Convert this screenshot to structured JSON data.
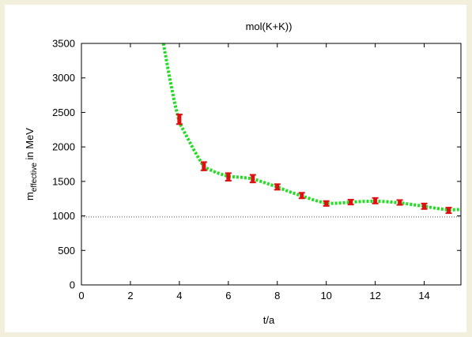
{
  "chart_data": {
    "type": "scatter",
    "title": "mol(K+K))",
    "xlabel": "t/a",
    "ylabel_main": "m",
    "ylabel_sub": "effective",
    "ylabel_tail": " in MeV",
    "xlim": [
      0,
      15.5
    ],
    "ylim": [
      0,
      3500
    ],
    "xticks": [
      "0",
      "2",
      "4",
      "6",
      "8",
      "10",
      "12",
      "14"
    ],
    "yticks": [
      "0",
      "500",
      "1000",
      "1500",
      "2000",
      "2500",
      "3000",
      "3500"
    ],
    "reference_line": 985,
    "fit_curve": {
      "x": [
        3.35,
        3.6,
        3.8,
        4.0,
        4.3,
        4.6,
        4.85,
        5.0,
        5.5,
        6.0,
        6.5,
        7.0,
        7.5,
        8.0,
        8.5,
        9.0,
        9.5,
        10.0,
        10.5,
        11.0,
        11.5,
        12.0,
        12.5,
        13.0,
        13.5,
        14.0,
        14.5,
        15.0,
        15.5
      ],
      "y": [
        3500,
        3000,
        2650,
        2350,
        2150,
        1950,
        1800,
        1710,
        1630,
        1570,
        1560,
        1540,
        1480,
        1420,
        1350,
        1290,
        1230,
        1180,
        1185,
        1200,
        1210,
        1215,
        1205,
        1190,
        1165,
        1140,
        1110,
        1085,
        1095
      ]
    },
    "points": [
      {
        "x": 4,
        "y": 2400,
        "err": 70
      },
      {
        "x": 5,
        "y": 1720,
        "err": 60
      },
      {
        "x": 6,
        "y": 1565,
        "err": 55
      },
      {
        "x": 7,
        "y": 1540,
        "err": 55
      },
      {
        "x": 8,
        "y": 1420,
        "err": 40
      },
      {
        "x": 9,
        "y": 1295,
        "err": 40
      },
      {
        "x": 10,
        "y": 1180,
        "err": 35
      },
      {
        "x": 11,
        "y": 1200,
        "err": 35
      },
      {
        "x": 12,
        "y": 1220,
        "err": 40
      },
      {
        "x": 13,
        "y": 1195,
        "err": 35
      },
      {
        "x": 14,
        "y": 1140,
        "err": 40
      },
      {
        "x": 15,
        "y": 1080,
        "err": 40
      }
    ],
    "colors": {
      "fit_curve": "#22dd22",
      "points": "#dd1111",
      "reference_line": "#555555",
      "axes": "#000000",
      "background": "#f2f0dc"
    },
    "grid": false
  }
}
